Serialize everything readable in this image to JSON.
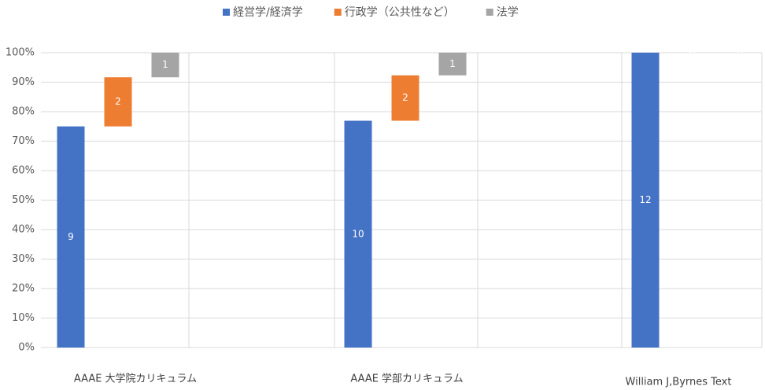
{
  "chart_data": {
    "type": "bar",
    "stack": "percent",
    "categories": [
      "AAAE 大学院カリキュラム",
      "AAAE 学部カリキュラム",
      "William J,Byrnes Text"
    ],
    "series": [
      {
        "name": "経営学/経済学",
        "color": "#4472c4",
        "values": [
          9,
          10,
          12
        ]
      },
      {
        "name": "行政学（公共性など）",
        "color": "#ed7d31",
        "values": [
          2,
          2,
          0
        ]
      },
      {
        "name": "法学",
        "color": "#a5a5a5",
        "values": [
          1,
          1,
          0
        ]
      }
    ],
    "ylim": [
      0,
      100
    ],
    "yticks": [
      {
        "value": 0,
        "label": "0%"
      },
      {
        "value": 10,
        "label": "10%"
      },
      {
        "value": 20,
        "label": "20%"
      },
      {
        "value": 30,
        "label": "30%"
      },
      {
        "value": 40,
        "label": "40%"
      },
      {
        "value": 50,
        "label": "50%"
      },
      {
        "value": 60,
        "label": "60%"
      },
      {
        "value": 70,
        "label": "70%"
      },
      {
        "value": 80,
        "label": "80%"
      },
      {
        "value": 90,
        "label": "90%"
      },
      {
        "value": 100,
        "label": "100%"
      }
    ],
    "grid": true,
    "legend": "top"
  }
}
